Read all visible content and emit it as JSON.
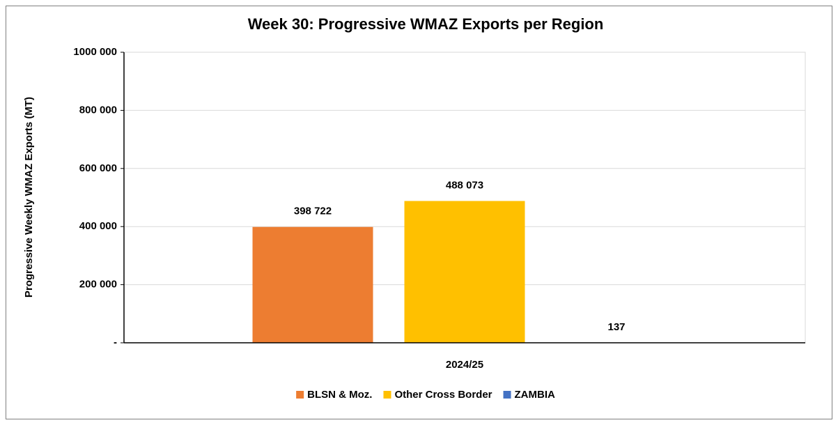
{
  "chart_data": {
    "type": "bar",
    "title": "Week 30: Progressive WMAZ Exports per Region",
    "y_label": "Progressive Weekly WMAZ Exports (MT)",
    "categories": [
      "2024/25"
    ],
    "series": [
      {
        "name": "BLSN & Moz.",
        "color": "#ED7D31",
        "values": [
          398722
        ],
        "value_labels": [
          "398 722"
        ]
      },
      {
        "name": "Other Cross Border",
        "color": "#FFC000",
        "values": [
          488073
        ],
        "value_labels": [
          "488 073"
        ]
      },
      {
        "name": "ZAMBIA",
        "color": "#4472C4",
        "values": [
          137
        ],
        "value_labels": [
          "137"
        ]
      }
    ],
    "ylim": [
      0,
      1000000
    ],
    "yticks": [
      {
        "value": 0,
        "label": "-"
      },
      {
        "value": 200000,
        "label": "200 000"
      },
      {
        "value": 400000,
        "label": "400 000"
      },
      {
        "value": 600000,
        "label": "600 000"
      },
      {
        "value": 800000,
        "label": "800 000"
      },
      {
        "value": 1000000,
        "label": "1000 000"
      }
    ],
    "grid": true,
    "legend": "bottom"
  }
}
